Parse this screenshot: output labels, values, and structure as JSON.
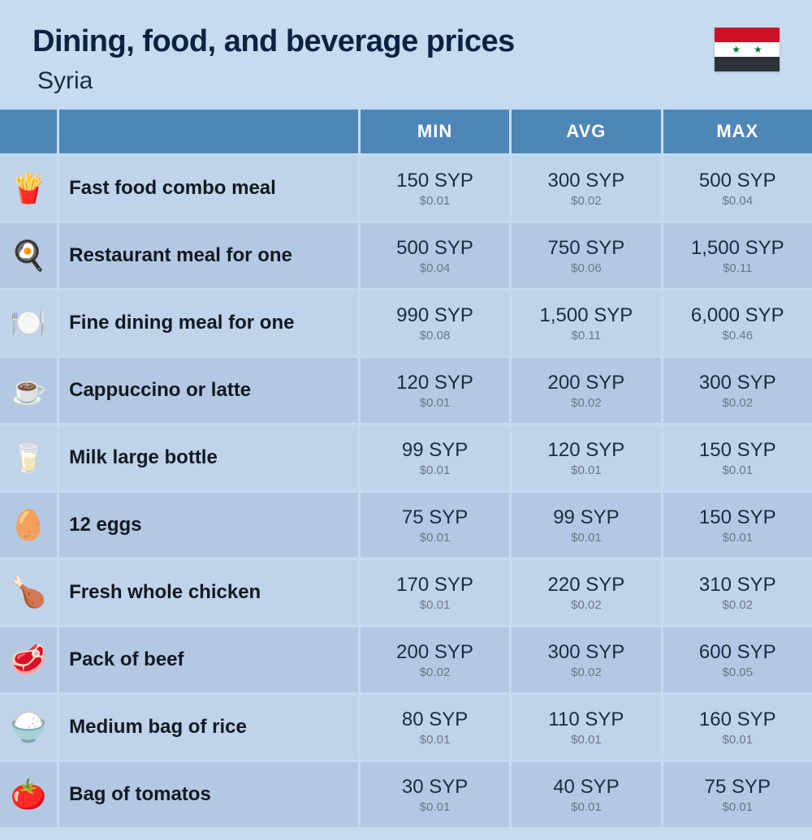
{
  "page": {
    "title": "Dining, food, and beverage prices",
    "subtitle": "Syria",
    "background_color": "#c6dbf0",
    "header_bg": "#4f86b8",
    "row_odd_bg": "#bfd3ea",
    "row_even_bg": "#b3c9e3",
    "flag": {
      "stripes": [
        "#ce1126",
        "#ffffff",
        "#2c3138"
      ],
      "star_color": "#007a3d"
    }
  },
  "columns": [
    "",
    "",
    "MIN",
    "AVG",
    "MAX"
  ],
  "rows": [
    {
      "icon": "fast-food",
      "emoji": "🍟",
      "name": "Fast food combo meal",
      "min": {
        "syp": "150 SYP",
        "usd": "$0.01"
      },
      "avg": {
        "syp": "300 SYP",
        "usd": "$0.02"
      },
      "max": {
        "syp": "500 SYP",
        "usd": "$0.04"
      }
    },
    {
      "icon": "restaurant-meal",
      "emoji": "🍳",
      "name": "Restaurant meal for one",
      "min": {
        "syp": "500 SYP",
        "usd": "$0.04"
      },
      "avg": {
        "syp": "750 SYP",
        "usd": "$0.06"
      },
      "max": {
        "syp": "1,500 SYP",
        "usd": "$0.11"
      }
    },
    {
      "icon": "fine-dining",
      "emoji": "🍽️",
      "name": "Fine dining meal for one",
      "min": {
        "syp": "990 SYP",
        "usd": "$0.08"
      },
      "avg": {
        "syp": "1,500 SYP",
        "usd": "$0.11"
      },
      "max": {
        "syp": "6,000 SYP",
        "usd": "$0.46"
      }
    },
    {
      "icon": "coffee",
      "emoji": "☕",
      "name": "Cappuccino or latte",
      "min": {
        "syp": "120 SYP",
        "usd": "$0.01"
      },
      "avg": {
        "syp": "200 SYP",
        "usd": "$0.02"
      },
      "max": {
        "syp": "300 SYP",
        "usd": "$0.02"
      }
    },
    {
      "icon": "milk",
      "emoji": "🥛",
      "name": "Milk large bottle",
      "min": {
        "syp": "99 SYP",
        "usd": "$0.01"
      },
      "avg": {
        "syp": "120 SYP",
        "usd": "$0.01"
      },
      "max": {
        "syp": "150 SYP",
        "usd": "$0.01"
      }
    },
    {
      "icon": "eggs",
      "emoji": "🥚",
      "name": "12 eggs",
      "min": {
        "syp": "75 SYP",
        "usd": "$0.01"
      },
      "avg": {
        "syp": "99 SYP",
        "usd": "$0.01"
      },
      "max": {
        "syp": "150 SYP",
        "usd": "$0.01"
      }
    },
    {
      "icon": "chicken",
      "emoji": "🍗",
      "name": "Fresh whole chicken",
      "min": {
        "syp": "170 SYP",
        "usd": "$0.01"
      },
      "avg": {
        "syp": "220 SYP",
        "usd": "$0.02"
      },
      "max": {
        "syp": "310 SYP",
        "usd": "$0.02"
      }
    },
    {
      "icon": "beef",
      "emoji": "🥩",
      "name": "Pack of beef",
      "min": {
        "syp": "200 SYP",
        "usd": "$0.02"
      },
      "avg": {
        "syp": "300 SYP",
        "usd": "$0.02"
      },
      "max": {
        "syp": "600 SYP",
        "usd": "$0.05"
      }
    },
    {
      "icon": "rice",
      "emoji": "🍚",
      "name": "Medium bag of rice",
      "min": {
        "syp": "80 SYP",
        "usd": "$0.01"
      },
      "avg": {
        "syp": "110 SYP",
        "usd": "$0.01"
      },
      "max": {
        "syp": "160 SYP",
        "usd": "$0.01"
      }
    },
    {
      "icon": "tomatoes",
      "emoji": "🍅",
      "name": "Bag of tomatos",
      "min": {
        "syp": "30 SYP",
        "usd": "$0.01"
      },
      "avg": {
        "syp": "40 SYP",
        "usd": "$0.01"
      },
      "max": {
        "syp": "75 SYP",
        "usd": "$0.01"
      }
    }
  ]
}
